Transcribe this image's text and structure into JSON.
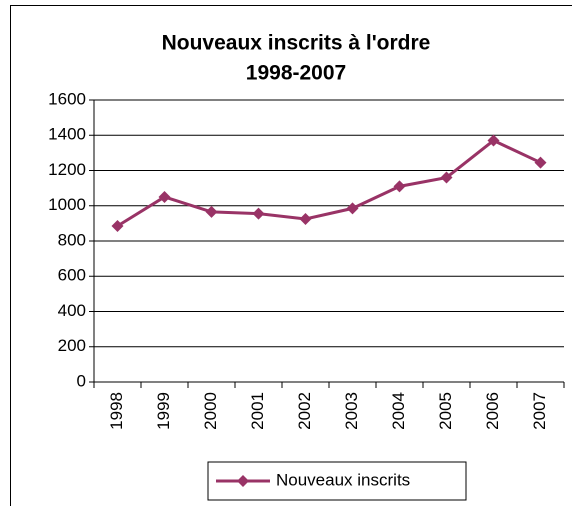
{
  "chart_data": {
    "type": "line",
    "title": "Nouveaux inscrits à l'ordre",
    "subtitle": "1998-2007",
    "categories": [
      "1998",
      "1999",
      "2000",
      "2001",
      "2002",
      "2003",
      "2004",
      "2005",
      "2006",
      "2007"
    ],
    "series": [
      {
        "name": "Nouveaux inscrits",
        "color": "#993366",
        "values": [
          885,
          1050,
          965,
          955,
          925,
          985,
          1110,
          1160,
          1370,
          1245
        ]
      }
    ],
    "ylim": [
      0,
      1600
    ],
    "yticks": [
      0,
      200,
      400,
      600,
      800,
      1000,
      1200,
      1400,
      1600
    ],
    "grid": true,
    "legend": "bottom"
  }
}
